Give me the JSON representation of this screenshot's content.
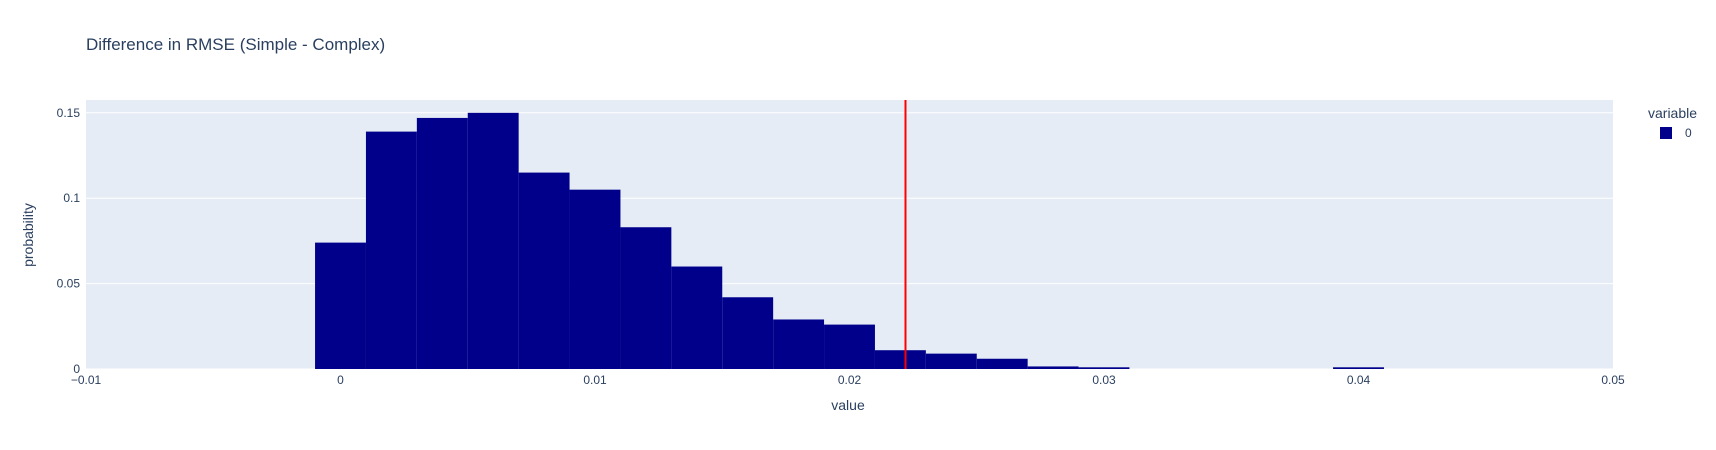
{
  "chart_data": {
    "type": "bar",
    "title": "Difference in RMSE (Simple - Complex)",
    "xlabel": "value",
    "ylabel": "probability",
    "xlim": [
      -0.01,
      0.05
    ],
    "ylim": [
      0,
      0.1575
    ],
    "x_ticks": [
      -0.01,
      0,
      0.01,
      0.02,
      0.03,
      0.04,
      0.05
    ],
    "x_tick_labels": [
      "−0.01",
      "0",
      "0.01",
      "0.02",
      "0.03",
      "0.04",
      "0.05"
    ],
    "y_ticks": [
      0,
      0.05,
      0.1,
      0.15
    ],
    "y_tick_labels": [
      "0",
      "0.05",
      "0.1",
      "0.15"
    ],
    "bin_width": 0.002,
    "bin_starts": [
      -0.001,
      0.001,
      0.003,
      0.005,
      0.007,
      0.009,
      0.011,
      0.013,
      0.015,
      0.017,
      0.019,
      0.021,
      0.023,
      0.025,
      0.027,
      0.029,
      0.031,
      0.033,
      0.035,
      0.037,
      0.039
    ],
    "series": [
      {
        "name": "0",
        "color": "#00008b",
        "values": [
          0.074,
          0.139,
          0.147,
          0.15,
          0.115,
          0.105,
          0.083,
          0.06,
          0.042,
          0.029,
          0.026,
          0.011,
          0.009,
          0.006,
          0.0015,
          0.001,
          0,
          0,
          0,
          0,
          0.001
        ]
      }
    ],
    "reference_line": {
      "x": 0.0222,
      "color": "#ff0000"
    },
    "legend": {
      "title": "variable",
      "position": "top-right"
    },
    "grid": true,
    "plot_background": "#e5ecf6"
  }
}
